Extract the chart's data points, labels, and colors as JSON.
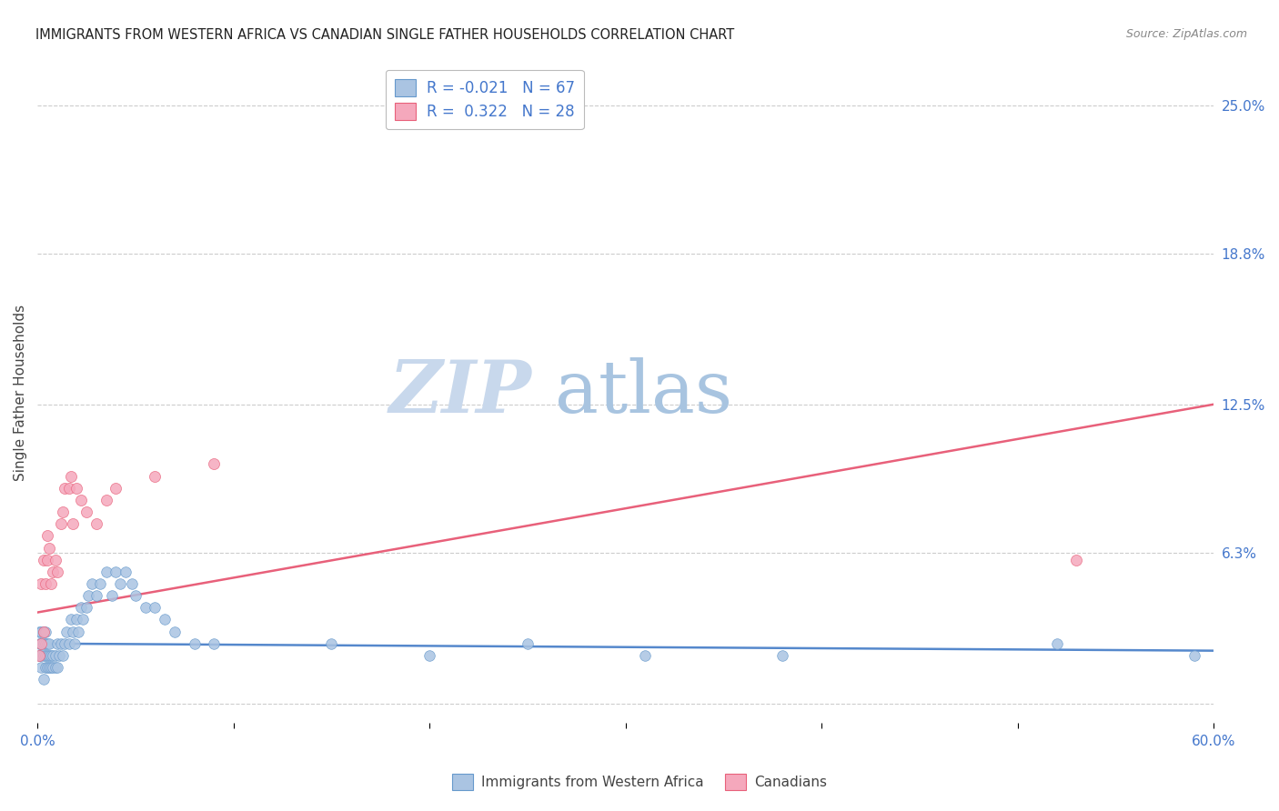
{
  "title": "IMMIGRANTS FROM WESTERN AFRICA VS CANADIAN SINGLE FATHER HOUSEHOLDS CORRELATION CHART",
  "source": "Source: ZipAtlas.com",
  "ylabel": "Single Father Households",
  "xlim": [
    0.0,
    0.6
  ],
  "ylim": [
    -0.008,
    0.268
  ],
  "yticks": [
    0.0,
    0.063,
    0.125,
    0.188,
    0.25
  ],
  "ytick_labels": [
    "",
    "6.3%",
    "12.5%",
    "18.8%",
    "25.0%"
  ],
  "xticks": [
    0.0,
    0.1,
    0.2,
    0.3,
    0.4,
    0.5,
    0.6
  ],
  "xtick_labels": [
    "0.0%",
    "",
    "",
    "",
    "",
    "",
    "60.0%"
  ],
  "blue_label": "Immigrants from Western Africa",
  "pink_label": "Canadians",
  "blue_R": "-0.021",
  "blue_N": "67",
  "pink_R": "0.322",
  "pink_N": "28",
  "blue_color": "#aac4e2",
  "pink_color": "#f5a8bc",
  "blue_edge_color": "#6699cc",
  "pink_edge_color": "#e8607a",
  "blue_trend_color": "#5588cc",
  "pink_trend_color": "#e8607a",
  "grid_color": "#cccccc",
  "title_color": "#222222",
  "axis_label_color": "#444444",
  "tick_color": "#4477cc",
  "source_color": "#888888",
  "watermark_ZIP_color": "#c8d8ec",
  "watermark_atlas_color": "#a8c4e0",
  "blue_x": [
    0.001,
    0.001,
    0.001,
    0.002,
    0.002,
    0.002,
    0.002,
    0.003,
    0.003,
    0.003,
    0.003,
    0.004,
    0.004,
    0.004,
    0.004,
    0.005,
    0.005,
    0.005,
    0.006,
    0.006,
    0.006,
    0.007,
    0.007,
    0.008,
    0.008,
    0.009,
    0.009,
    0.01,
    0.01,
    0.011,
    0.012,
    0.013,
    0.014,
    0.015,
    0.016,
    0.017,
    0.018,
    0.019,
    0.02,
    0.021,
    0.022,
    0.023,
    0.025,
    0.026,
    0.028,
    0.03,
    0.032,
    0.035,
    0.038,
    0.04,
    0.042,
    0.045,
    0.048,
    0.05,
    0.055,
    0.06,
    0.065,
    0.07,
    0.08,
    0.09,
    0.15,
    0.2,
    0.25,
    0.31,
    0.38,
    0.52,
    0.59
  ],
  "blue_y": [
    0.02,
    0.025,
    0.03,
    0.015,
    0.02,
    0.025,
    0.03,
    0.01,
    0.02,
    0.025,
    0.03,
    0.015,
    0.02,
    0.025,
    0.03,
    0.015,
    0.02,
    0.025,
    0.015,
    0.02,
    0.025,
    0.015,
    0.02,
    0.015,
    0.02,
    0.015,
    0.02,
    0.015,
    0.025,
    0.02,
    0.025,
    0.02,
    0.025,
    0.03,
    0.025,
    0.035,
    0.03,
    0.025,
    0.035,
    0.03,
    0.04,
    0.035,
    0.04,
    0.045,
    0.05,
    0.045,
    0.05,
    0.055,
    0.045,
    0.055,
    0.05,
    0.055,
    0.05,
    0.045,
    0.04,
    0.04,
    0.035,
    0.03,
    0.025,
    0.025,
    0.025,
    0.02,
    0.025,
    0.02,
    0.02,
    0.025,
    0.02
  ],
  "pink_x": [
    0.001,
    0.002,
    0.002,
    0.003,
    0.003,
    0.004,
    0.005,
    0.005,
    0.006,
    0.007,
    0.008,
    0.009,
    0.01,
    0.012,
    0.013,
    0.014,
    0.016,
    0.017,
    0.018,
    0.02,
    0.022,
    0.025,
    0.03,
    0.035,
    0.04,
    0.06,
    0.09,
    0.53
  ],
  "pink_y": [
    0.02,
    0.025,
    0.05,
    0.03,
    0.06,
    0.05,
    0.06,
    0.07,
    0.065,
    0.05,
    0.055,
    0.06,
    0.055,
    0.075,
    0.08,
    0.09,
    0.09,
    0.095,
    0.075,
    0.09,
    0.085,
    0.08,
    0.075,
    0.085,
    0.09,
    0.095,
    0.1,
    0.06
  ],
  "blue_trend_x": [
    0.0,
    0.6
  ],
  "blue_trend_y": [
    0.025,
    0.022
  ],
  "pink_trend_x": [
    0.0,
    0.6
  ],
  "pink_trend_y": [
    0.038,
    0.125
  ]
}
